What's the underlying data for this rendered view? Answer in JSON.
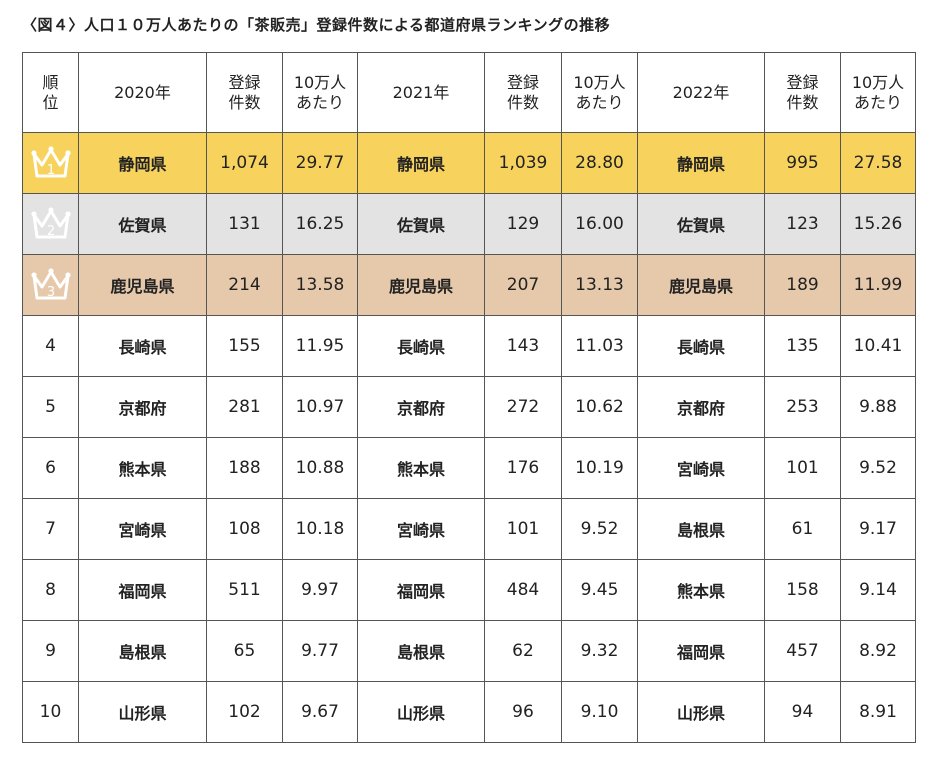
{
  "title": "〈図４〉人口１０万人あたりの「茶販売」登録件数による都道府県ランキングの推移",
  "header": {
    "rank_line1": "順",
    "rank_line2": "位",
    "years": [
      "2020年",
      "2021年",
      "2022年"
    ],
    "count_line1": "登録",
    "count_line2": "件数",
    "per_line1": "10万人",
    "per_line2": "あたり"
  },
  "colors": {
    "gold": "#f7d35e",
    "silver": "#e3e3e3",
    "bronze": "#e6c8ab"
  },
  "rows": [
    {
      "rank": "1",
      "icon": "crown-icon",
      "y2020": {
        "pref": "静岡県",
        "count": "1,074",
        "per": "29.77"
      },
      "y2021": {
        "pref": "静岡県",
        "count": "1,039",
        "per": "28.80"
      },
      "y2022": {
        "pref": "静岡県",
        "count": "995",
        "per": "27.58"
      }
    },
    {
      "rank": "2",
      "icon": "crown-icon",
      "y2020": {
        "pref": "佐賀県",
        "count": "131",
        "per": "16.25"
      },
      "y2021": {
        "pref": "佐賀県",
        "count": "129",
        "per": "16.00"
      },
      "y2022": {
        "pref": "佐賀県",
        "count": "123",
        "per": "15.26"
      }
    },
    {
      "rank": "3",
      "icon": "crown-icon",
      "y2020": {
        "pref": "鹿児島県",
        "count": "214",
        "per": "13.58"
      },
      "y2021": {
        "pref": "鹿児島県",
        "count": "207",
        "per": "13.13"
      },
      "y2022": {
        "pref": "鹿児島県",
        "count": "189",
        "per": "11.99"
      }
    },
    {
      "rank": "4",
      "y2020": {
        "pref": "長崎県",
        "count": "155",
        "per": "11.95"
      },
      "y2021": {
        "pref": "長崎県",
        "count": "143",
        "per": "11.03"
      },
      "y2022": {
        "pref": "長崎県",
        "count": "135",
        "per": "10.41"
      }
    },
    {
      "rank": "5",
      "y2020": {
        "pref": "京都府",
        "count": "281",
        "per": "10.97"
      },
      "y2021": {
        "pref": "京都府",
        "count": "272",
        "per": "10.62"
      },
      "y2022": {
        "pref": "京都府",
        "count": "253",
        "per": "9.88"
      }
    },
    {
      "rank": "6",
      "y2020": {
        "pref": "熊本県",
        "count": "188",
        "per": "10.88"
      },
      "y2021": {
        "pref": "熊本県",
        "count": "176",
        "per": "10.19"
      },
      "y2022": {
        "pref": "宮崎県",
        "count": "101",
        "per": "9.52"
      }
    },
    {
      "rank": "7",
      "y2020": {
        "pref": "宮崎県",
        "count": "108",
        "per": "10.18"
      },
      "y2021": {
        "pref": "宮崎県",
        "count": "101",
        "per": "9.52"
      },
      "y2022": {
        "pref": "島根県",
        "count": "61",
        "per": "9.17"
      }
    },
    {
      "rank": "8",
      "y2020": {
        "pref": "福岡県",
        "count": "511",
        "per": "9.97"
      },
      "y2021": {
        "pref": "福岡県",
        "count": "484",
        "per": "9.45"
      },
      "y2022": {
        "pref": "熊本県",
        "count": "158",
        "per": "9.14"
      }
    },
    {
      "rank": "9",
      "y2020": {
        "pref": "島根県",
        "count": "65",
        "per": "9.77"
      },
      "y2021": {
        "pref": "島根県",
        "count": "62",
        "per": "9.32"
      },
      "y2022": {
        "pref": "福岡県",
        "count": "457",
        "per": "8.92"
      }
    },
    {
      "rank": "10",
      "y2020": {
        "pref": "山形県",
        "count": "102",
        "per": "9.67"
      },
      "y2021": {
        "pref": "山形県",
        "count": "96",
        "per": "9.10"
      },
      "y2022": {
        "pref": "山形県",
        "count": "94",
        "per": "8.91"
      }
    }
  ]
}
